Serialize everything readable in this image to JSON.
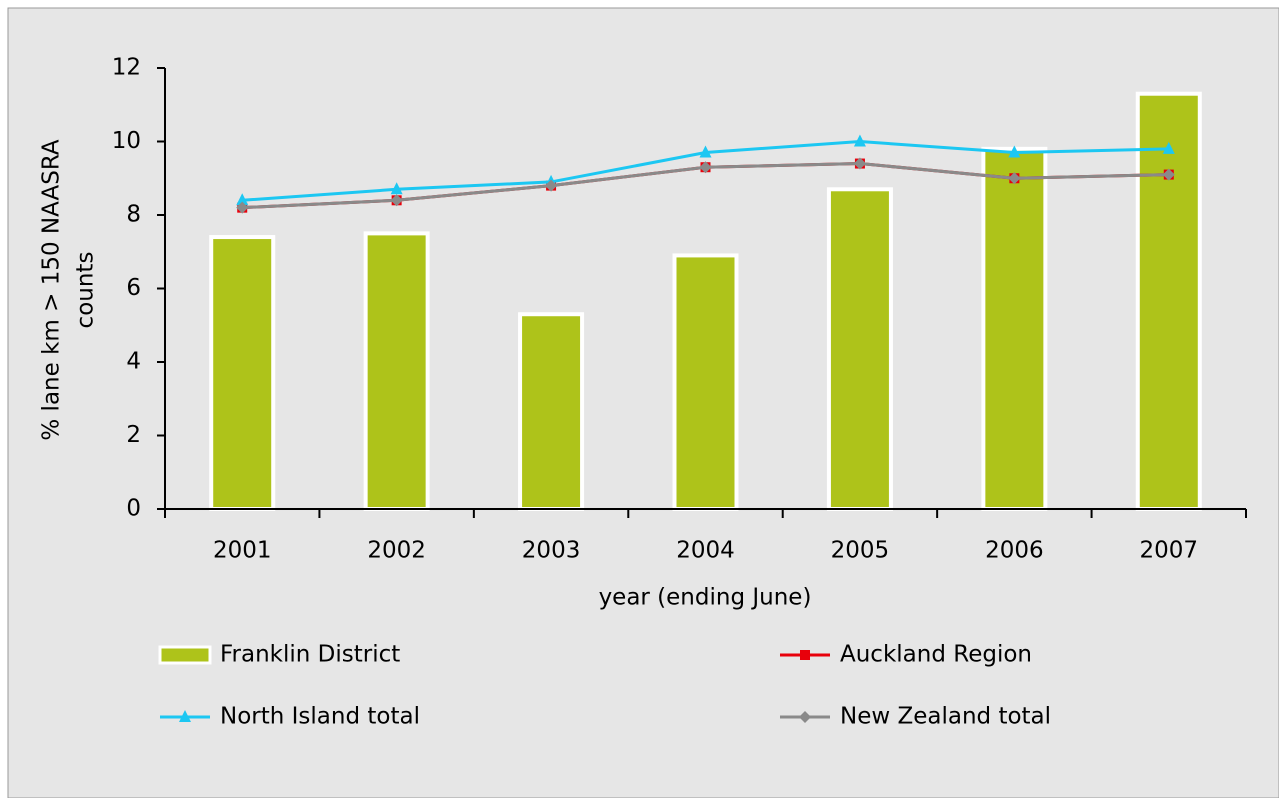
{
  "chart_data": {
    "type": "bar-line",
    "xlabel": "year (ending June)",
    "ylabel": [
      "% lane km > 150 NAASRA",
      "counts"
    ],
    "categories": [
      "2001",
      "2002",
      "2003",
      "2004",
      "2005",
      "2006",
      "2007"
    ],
    "ylim": [
      0,
      12
    ],
    "yticks": [
      0,
      2,
      4,
      6,
      8,
      10,
      12
    ],
    "series": [
      {
        "name": "Franklin District",
        "type": "bar",
        "color": "#aec31a",
        "values": [
          7.4,
          7.5,
          5.3,
          6.9,
          8.7,
          9.8,
          11.3
        ]
      },
      {
        "name": "Auckland Region",
        "type": "line",
        "marker": "square",
        "color": "#e8000b",
        "values": [
          8.2,
          8.4,
          8.8,
          9.3,
          9.4,
          9.0,
          9.1
        ]
      },
      {
        "name": "North Island total",
        "type": "line",
        "marker": "triangle",
        "color": "#1cc7f2",
        "values": [
          8.4,
          8.7,
          8.9,
          9.7,
          10.0,
          9.7,
          9.8
        ]
      },
      {
        "name": "New Zealand total",
        "type": "line",
        "marker": "diamond",
        "color": "#8a8a8a",
        "values": [
          8.2,
          8.4,
          8.8,
          9.3,
          9.4,
          9.0,
          9.1
        ]
      }
    ]
  }
}
